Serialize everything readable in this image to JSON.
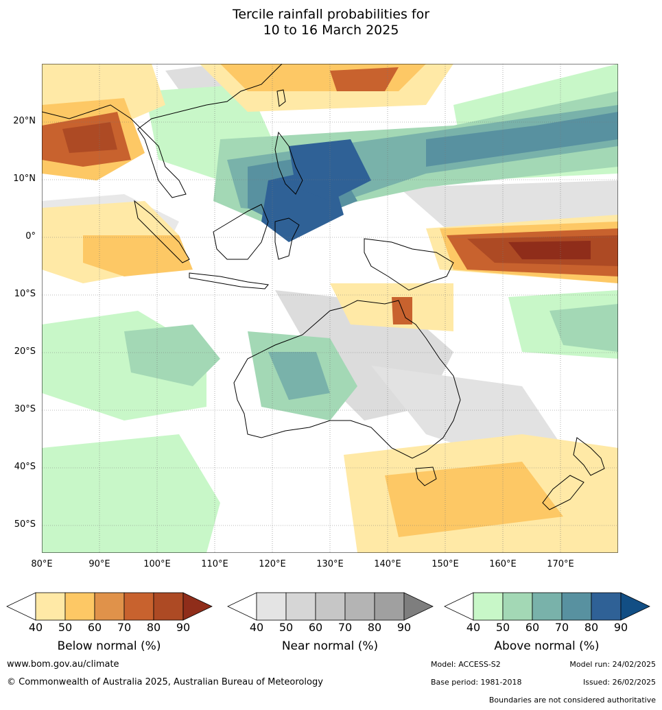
{
  "title_line1": "Tercile rainfall probabilities for",
  "title_line2": "10 to 16 March 2025",
  "lat_labels": [
    "20°N",
    "10°N",
    "0°",
    "10°S",
    "20°S",
    "30°S",
    "40°S",
    "50°S"
  ],
  "lon_labels": [
    "80°E",
    "90°E",
    "100°E",
    "110°E",
    "120°E",
    "130°E",
    "140°E",
    "150°E",
    "160°E",
    "170°E"
  ],
  "legend": {
    "ticks": [
      "40",
      "50",
      "60",
      "70",
      "80",
      "90"
    ],
    "below": {
      "title": "Below normal (%)",
      "colors": [
        "#ffffff",
        "#ffe9a6",
        "#fdc865",
        "#e0924a",
        "#c8622e",
        "#ad4a24",
        "#8f2d1a"
      ]
    },
    "near": {
      "title": "Near normal (%)",
      "colors": [
        "#ffffff",
        "#e4e4e4",
        "#d6d6d6",
        "#c6c6c6",
        "#b4b4b4",
        "#a0a0a0",
        "#7e7e7e"
      ]
    },
    "above": {
      "title": "Above normal (%)",
      "colors": [
        "#ffffff",
        "#c8f7c8",
        "#a3d8b5",
        "#79b2aa",
        "#5891a0",
        "#2f6196",
        "#124e84"
      ]
    }
  },
  "footer": {
    "url": "www.bom.gov.au/climate",
    "copyright": "© Commonwealth of Australia 2025, Australian Bureau of Meteorology",
    "model": "Model: ACCESS-S2",
    "model_run": "Model run: 24/02/2025",
    "base_period": "Base period: 1981-2018",
    "issued": "Issued: 26/02/2025",
    "disclaimer": "Boundaries are not considered authoritative"
  }
}
